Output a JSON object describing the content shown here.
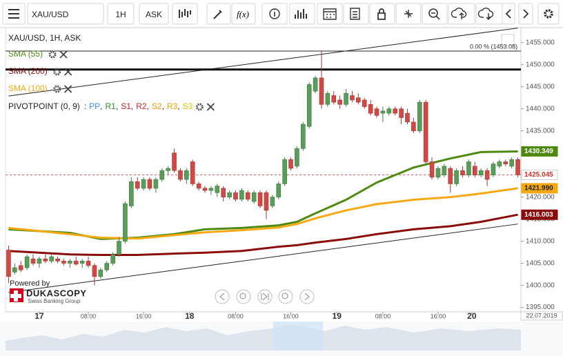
{
  "toolbar": {
    "symbol": "XAU/USD",
    "period": "1H",
    "side": "ASK",
    "fx": "f(x)"
  },
  "chart_data": {
    "type": "candlestick",
    "title": "XAU/USD, 1H, ASK",
    "xlim": [
      -0.5,
      83.5
    ],
    "ylim": [
      1394,
      1458.4
    ],
    "yticks": [
      {
        "value": 1395,
        "label": "1395.000"
      },
      {
        "value": 1400,
        "label": "1400.000"
      },
      {
        "value": 1405,
        "label": "1405.000"
      },
      {
        "value": 1410,
        "label": "1410.000"
      },
      {
        "value": 1415,
        "label": "1415.000"
      },
      {
        "value": 1420,
        "label": "1420.000"
      },
      {
        "value": 1425,
        "label": "1425.000"
      },
      {
        "value": 1430,
        "label": "1430.000"
      },
      {
        "value": 1435,
        "label": "1435.000"
      },
      {
        "value": 1440,
        "label": "1440.000"
      },
      {
        "value": 1445,
        "label": "1445.000"
      },
      {
        "value": 1450,
        "label": "1450.000"
      },
      {
        "value": 1455,
        "label": "1455.000"
      }
    ],
    "xticks": [
      {
        "value": 5,
        "label": "17"
      },
      {
        "value": 13,
        "label": "08:00"
      },
      {
        "value": 22,
        "label": "16:00"
      },
      {
        "value": 29.5,
        "label": "18"
      },
      {
        "value": 37,
        "label": "08:00"
      },
      {
        "value": 46,
        "label": "16:00"
      },
      {
        "value": 53.5,
        "label": "19"
      },
      {
        "value": 61,
        "label": "08:00"
      },
      {
        "value": 70,
        "label": "16:00"
      },
      {
        "value": 75.5,
        "label": "20"
      }
    ],
    "last_date": "22.07.2019",
    "grid": false,
    "up_color": "#5a9c5a",
    "down_color": "#cf4a44",
    "open": [
      1408,
      1403,
      1404.5,
      1404,
      1406,
      1405,
      1406,
      1405.5,
      1406,
      1405.5,
      1405,
      1405.5,
      1405,
      1405.5,
      1404.5,
      1402,
      1403.5,
      1405,
      1407,
      1410,
      1418,
      1423.5,
      1422,
      1424,
      1422,
      1424,
      1426,
      1430,
      1426,
      1424,
      1428,
      1423,
      1422,
      1421.5,
      1421,
      1422,
      1420,
      1421,
      1419.5,
      1421,
      1419,
      1421,
      1421,
      1418,
      1420,
      1423,
      1428.5,
      1427,
      1431,
      1436,
      1444,
      1447,
      1441,
      1443,
      1442,
      1441,
      1443,
      1442.5,
      1442,
      1441,
      1440,
      1439,
      1439,
      1440,
      1440,
      1439,
      1437,
      1435,
      1441.5,
      1428,
      1424.5,
      1425,
      1426.5,
      1423,
      1426,
      1425,
      1427,
      1425,
      1426,
      1425,
      1427,
      1428,
      1427,
      1428.5
    ],
    "high": [
      1409,
      1405,
      1405.5,
      1407,
      1407,
      1406.5,
      1407,
      1407,
      1406.5,
      1406,
      1406,
      1406.5,
      1406,
      1406.5,
      1405,
      1404,
      1405.5,
      1407.5,
      1411,
      1419,
      1424.5,
      1424.5,
      1424.5,
      1424.5,
      1424.5,
      1426.5,
      1427,
      1431,
      1426.5,
      1426.5,
      1428.5,
      1423.5,
      1422.5,
      1422.5,
      1423,
      1422.5,
      1421.5,
      1421.5,
      1422,
      1421.5,
      1421.5,
      1421.5,
      1421.5,
      1420.5,
      1423.5,
      1429,
      1429,
      1431.5,
      1437,
      1446,
      1447.5,
      1453.1,
      1444,
      1444,
      1443,
      1444.5,
      1444,
      1443.5,
      1442.5,
      1442,
      1440.5,
      1440.5,
      1440.5,
      1440.5,
      1440.5,
      1440,
      1438,
      1442,
      1442,
      1429,
      1427,
      1427.5,
      1427,
      1426.5,
      1427,
      1428.5,
      1428,
      1426.5,
      1426.5,
      1428,
      1428.5,
      1428.5,
      1429,
      1429
    ],
    "low": [
      1400.5,
      1402.5,
      1403,
      1403.5,
      1404.5,
      1404,
      1405,
      1405,
      1405,
      1404.5,
      1404,
      1404.5,
      1404,
      1404,
      1400,
      1401.5,
      1403,
      1404.5,
      1406.5,
      1409.5,
      1417.5,
      1421.5,
      1421.5,
      1421.5,
      1421,
      1423.5,
      1425,
      1425.5,
      1423.5,
      1423,
      1422.5,
      1421.5,
      1421,
      1420.5,
      1420,
      1419,
      1419.5,
      1419,
      1419,
      1419,
      1418.5,
      1417.5,
      1415,
      1417.5,
      1419.5,
      1422.5,
      1426,
      1426.5,
      1430.5,
      1435.5,
      1443.5,
      1440,
      1440.5,
      1441,
      1440,
      1440.5,
      1441.5,
      1441,
      1440,
      1438.5,
      1438,
      1437,
      1438.5,
      1438.5,
      1436.5,
      1436.5,
      1434.5,
      1434.5,
      1427.5,
      1424,
      1424,
      1424.5,
      1421,
      1422.5,
      1424.5,
      1424.5,
      1424.5,
      1424.5,
      1422.5,
      1424.5,
      1426.5,
      1427,
      1426.5,
      1424.5
    ],
    "close": [
      1402,
      1404,
      1403.5,
      1406.5,
      1405,
      1406,
      1405.5,
      1406.5,
      1405.5,
      1405,
      1405.5,
      1404.8,
      1405.5,
      1404.5,
      1402,
      1403.5,
      1405,
      1407,
      1410,
      1418.5,
      1423.5,
      1422,
      1424,
      1422,
      1424,
      1426,
      1426.5,
      1426,
      1424,
      1426,
      1423,
      1422,
      1421.5,
      1422,
      1422.5,
      1420,
      1421,
      1419.5,
      1421.5,
      1419.5,
      1421,
      1418,
      1417,
      1420,
      1423,
      1428.5,
      1426.5,
      1431,
      1436.5,
      1445.5,
      1447,
      1441,
      1443.5,
      1441.5,
      1441,
      1443.5,
      1442,
      1441.5,
      1440.5,
      1439,
      1438.5,
      1439.5,
      1440,
      1439,
      1438,
      1437,
      1435,
      1441.5,
      1428,
      1424.5,
      1426.5,
      1427,
      1423,
      1426,
      1425,
      1428,
      1425,
      1426,
      1424,
      1427.5,
      1428,
      1427.5,
      1428.5,
      1425.045
    ],
    "series": [
      {
        "name": "SMA (55)",
        "color": "#4f8a10",
        "x": [
          0,
          10,
          15,
          21,
          27,
          32,
          38,
          44,
          47,
          50,
          55,
          60,
          66,
          72,
          77,
          83
        ],
        "values": [
          1412.7,
          1411.9,
          1410.5,
          1410.8,
          1411.6,
          1412.7,
          1413,
          1413.6,
          1414.4,
          1416.3,
          1419.4,
          1423.3,
          1426.7,
          1428.75,
          1430.2,
          1430.349
        ]
      },
      {
        "name": "SMA (200)",
        "color": "#8b0a0a",
        "x": [
          0,
          10,
          15,
          21,
          27,
          32,
          38,
          44,
          47,
          50,
          55,
          60,
          66,
          72,
          77,
          83
        ],
        "values": [
          1407.8,
          1407,
          1406.9,
          1406.9,
          1407.2,
          1407.4,
          1407.8,
          1408.75,
          1409.1,
          1409.7,
          1410.5,
          1411.6,
          1412.7,
          1413.4,
          1414.4,
          1416.003
        ]
      },
      {
        "name": "SMA (100)",
        "color": "#f5a810",
        "x": [
          0,
          10,
          15,
          21,
          27,
          32,
          38,
          44,
          47,
          50,
          55,
          60,
          66,
          72,
          77,
          83
        ],
        "values": [
          1413,
          1411.6,
          1410.8,
          1410.6,
          1411.4,
          1412,
          1412.5,
          1413.1,
          1413.9,
          1415.2,
          1417,
          1418.4,
          1419.4,
          1420,
          1420.8,
          1421.99
        ]
      }
    ],
    "price_tags": [
      {
        "value": 1430.349,
        "label": "1430.349",
        "color": "#4f8a10"
      },
      {
        "value": 1425.045,
        "label": "1425.045",
        "color": "#d0302a"
      },
      {
        "value": 1421.99,
        "label": "1421.990",
        "color": "#f5a810"
      },
      {
        "value": 1416.003,
        "label": "1416.003",
        "color": "#8b0a0a"
      }
    ],
    "fib_level": {
      "value": 1453.08,
      "label": "0.00 % (1453.08)"
    },
    "horizontal_line": 1448.9,
    "trend_lines": [
      {
        "x": [
          0,
          83
        ],
        "values": [
          1442.9,
          1458.3
        ]
      },
      {
        "x": [
          0,
          83
        ],
        "values": [
          1398.4,
          1413.9
        ]
      }
    ],
    "pivot": {
      "label": "PIVOTPOINT (0, 9)",
      "prefix": ":",
      "separator": ",",
      "items": [
        {
          "name": "PP",
          "color": "#3b8fe0"
        },
        {
          "name": "R1",
          "color": "#2e8b2e"
        },
        {
          "name": "S1",
          "color": "#d02020"
        },
        {
          "name": "R2",
          "color": "#c62828"
        },
        {
          "name": "S2",
          "color": "#f29a00"
        },
        {
          "name": "R3",
          "color": "#e8a000"
        },
        {
          "name": "S3",
          "color": "#e0c400"
        }
      ]
    }
  },
  "branding": {
    "powered": "Powered by",
    "name": "DUKASCOPY",
    "tagline": "Swiss Banking Group"
  }
}
